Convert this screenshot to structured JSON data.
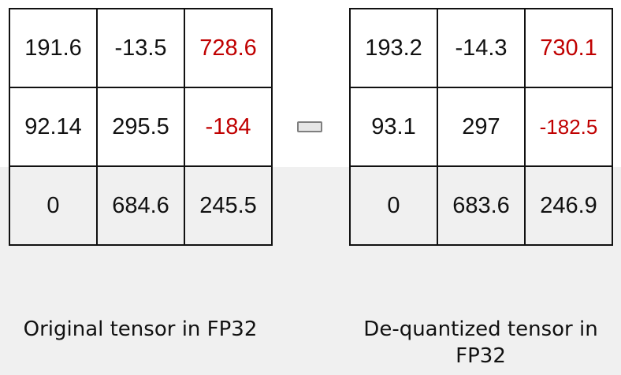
{
  "colors": {
    "text": "#111111",
    "highlight": "#c00000",
    "grid_line": "#111111",
    "background_light": "#ffffff",
    "background_gray": "#f0f0f0"
  },
  "original_tensor": {
    "caption": "Original tensor in FP32",
    "rows": [
      [
        "191.6",
        "-13.5",
        "728.6"
      ],
      [
        "92.14",
        "295.5",
        "-184"
      ],
      [
        "0",
        "684.6",
        "245.5"
      ]
    ],
    "highlighted_cells": [
      [
        0,
        2
      ],
      [
        1,
        2
      ]
    ]
  },
  "dequantized_tensor": {
    "caption_line1": "De-quantized tensor in",
    "caption_line2": "FP32",
    "rows": [
      [
        "193.2",
        "-14.3",
        "730.1"
      ],
      [
        "93.1",
        "297",
        "-182.5"
      ],
      [
        "0",
        "683.6",
        "246.9"
      ]
    ],
    "highlighted_cells": [
      [
        0,
        2
      ],
      [
        1,
        2
      ]
    ]
  },
  "operator_icon": "approx-equals-bar-icon"
}
